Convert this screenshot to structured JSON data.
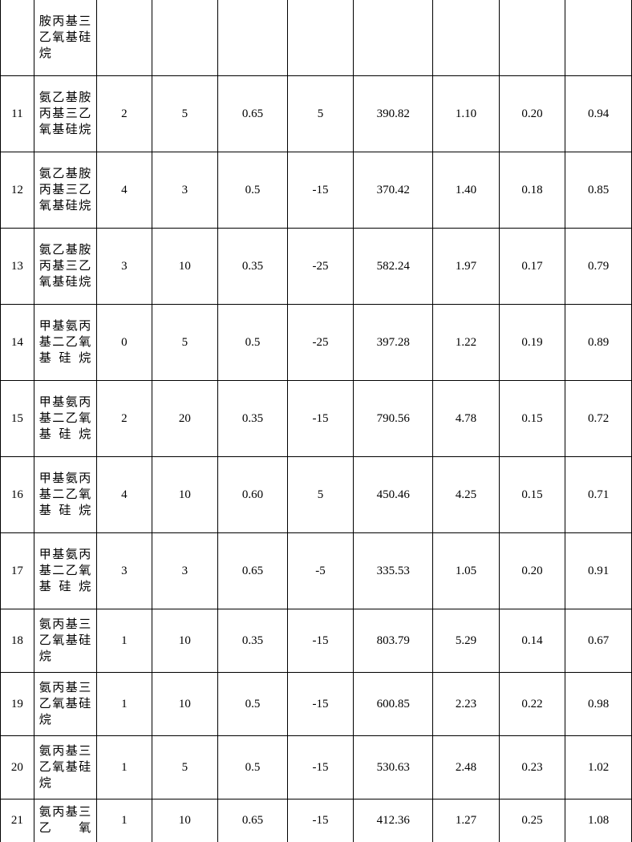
{
  "rows": [
    {
      "id": "",
      "name": "胺丙基三乙氧基硅烷",
      "c2": "",
      "c3": "",
      "c4": "",
      "c5": "",
      "c6": "",
      "c7": "",
      "c8": "",
      "c9": "",
      "topPartial": true
    },
    {
      "id": "11",
      "name": "氨乙基胺丙基三乙氧基硅烷",
      "c2": "2",
      "c3": "5",
      "c4": "0.65",
      "c5": "5",
      "c6": "390.82",
      "c7": "1.10",
      "c8": "0.20",
      "c9": "0.94"
    },
    {
      "id": "12",
      "name": "氨乙基胺丙基三乙氧基硅烷",
      "c2": "4",
      "c3": "3",
      "c4": "0.5",
      "c5": "-15",
      "c6": "370.42",
      "c7": "1.40",
      "c8": "0.18",
      "c9": "0.85"
    },
    {
      "id": "13",
      "name": "氨乙基胺丙基三乙氧基硅烷",
      "c2": "3",
      "c3": "10",
      "c4": "0.35",
      "c5": "-25",
      "c6": "582.24",
      "c7": "1.97",
      "c8": "0.17",
      "c9": "0.79"
    },
    {
      "id": "14",
      "name": "甲基氨丙基二乙氧基硅烷",
      "c2": "0",
      "c3": "5",
      "c4": "0.5",
      "c5": "-25",
      "c6": "397.28",
      "c7": "1.22",
      "c8": "0.19",
      "c9": "0.89"
    },
    {
      "id": "15",
      "name": "甲基氨丙基二乙氧基硅烷",
      "c2": "2",
      "c3": "20",
      "c4": "0.35",
      "c5": "-15",
      "c6": "790.56",
      "c7": "4.78",
      "c8": "0.15",
      "c9": "0.72"
    },
    {
      "id": "16",
      "name": "甲基氨丙基二乙氧基硅烷",
      "c2": "4",
      "c3": "10",
      "c4": "0.60",
      "c5": "5",
      "c6": "450.46",
      "c7": "4.25",
      "c8": "0.15",
      "c9": "0.71"
    },
    {
      "id": "17",
      "name": "甲基氨丙基二乙氧基硅烷",
      "c2": "3",
      "c3": "3",
      "c4": "0.65",
      "c5": "-5",
      "c6": "335.53",
      "c7": "1.05",
      "c8": "0.20",
      "c9": "0.91"
    },
    {
      "id": "18",
      "name": "氨丙基三乙氧基硅烷",
      "c2": "1",
      "c3": "10",
      "c4": "0.35",
      "c5": "-15",
      "c6": "803.79",
      "c7": "5.29",
      "c8": "0.14",
      "c9": "0.67",
      "narrow": true
    },
    {
      "id": "19",
      "name": "氨丙基三乙氧基硅烷",
      "c2": "1",
      "c3": "10",
      "c4": "0.5",
      "c5": "-15",
      "c6": "600.85",
      "c7": "2.23",
      "c8": "0.22",
      "c9": "0.98",
      "narrow": true
    },
    {
      "id": "20",
      "name": "氨丙基三乙氧基硅烷",
      "c2": "1",
      "c3": "5",
      "c4": "0.5",
      "c5": "-15",
      "c6": "530.63",
      "c7": "2.48",
      "c8": "0.23",
      "c9": "1.02",
      "narrow": true
    },
    {
      "id": "21",
      "name": "氨丙基三乙氧",
      "c2": "1",
      "c3": "10",
      "c4": "0.65",
      "c5": "-15",
      "c6": "412.36",
      "c7": "1.27",
      "c8": "0.25",
      "c9": "1.08",
      "bottomPartial": true
    }
  ]
}
